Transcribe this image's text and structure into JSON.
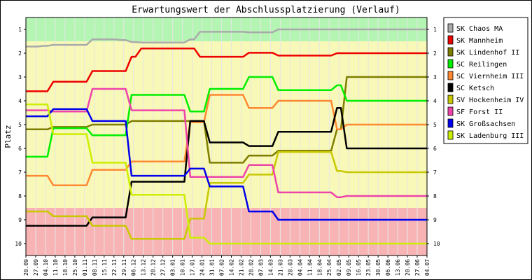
{
  "chart_data": {
    "type": "line",
    "title": "Erwartungswert der Abschlussplatzierung (Verlauf)",
    "ylabel": "Platz",
    "xlabel": "",
    "ylim": [
      1,
      10
    ],
    "y_inverted": true,
    "yticks": [
      1,
      2,
      3,
      4,
      5,
      6,
      7,
      8,
      9,
      10
    ],
    "legend_position": "right",
    "x": [
      "20.09",
      "27.09",
      "04.10",
      "11.10",
      "18.10",
      "25.10",
      "01.11",
      "08.11",
      "15.11",
      "22.11",
      "29.11",
      "06.12",
      "13.12",
      "20.12",
      "27.12",
      "03.01",
      "10.01",
      "17.01",
      "24.01",
      "31.01",
      "07.02",
      "14.02",
      "21.02",
      "28.02",
      "07.03",
      "14.03",
      "21.03",
      "28.03",
      "04.04",
      "11.04",
      "18.04",
      "25.04",
      "02.05",
      "09.05",
      "16.05",
      "23.05",
      "30.05",
      "06.06",
      "13.06",
      "20.06",
      "27.06",
      "04.07"
    ],
    "bands": [
      {
        "from": 0.5,
        "to": 1.5,
        "color": "#b4f5b4"
      },
      {
        "from": 1.5,
        "to": 8.5,
        "color": "#f8f8b8"
      },
      {
        "from": 8.5,
        "to": 10.5,
        "color": "#f8b4b4"
      }
    ],
    "series": [
      {
        "name": "SK Chaos MA",
        "color": "#aaaaaa",
        "values": [
          1.72,
          1.72,
          1.69,
          1.65,
          1.65,
          1.65,
          1.65,
          1.42,
          1.42,
          1.42,
          1.45,
          1.53,
          1.55,
          1.55,
          1.55,
          1.55,
          1.55,
          1.42,
          1.1,
          1.1,
          1.1,
          1.1,
          1.1,
          1.12,
          1.12,
          1.12,
          1,
          1,
          1,
          1,
          1,
          1,
          1,
          1,
          1,
          1,
          1,
          1,
          1,
          1,
          1,
          1
        ]
      },
      {
        "name": "SK Mannheim",
        "color": "#ee0000",
        "values": [
          3.6,
          3.6,
          3.6,
          3.2,
          3.2,
          3.2,
          3.2,
          2.75,
          2.75,
          2.75,
          2.75,
          2.15,
          1.8,
          1.8,
          1.8,
          1.8,
          1.8,
          1.8,
          2.15,
          2.15,
          2.15,
          2.15,
          2.15,
          1.98,
          1.98,
          1.98,
          2.1,
          2.1,
          2.1,
          2.1,
          2.1,
          2.1,
          2.0,
          2,
          2,
          2,
          2,
          2,
          2,
          2,
          2,
          2
        ]
      },
      {
        "name": "SK Lindenhof II",
        "color": "#7d7d00",
        "values": [
          5.2,
          5.2,
          5.2,
          5.1,
          5.1,
          5.1,
          5.1,
          5.0,
          5.0,
          5.0,
          5.0,
          4.85,
          4.85,
          4.85,
          4.85,
          4.85,
          4.85,
          4.85,
          4.85,
          6.6,
          6.6,
          6.6,
          6.6,
          6.3,
          6.3,
          6.3,
          6.1,
          6.1,
          6.1,
          6.1,
          6.1,
          6.1,
          5.2,
          3,
          3,
          3,
          3,
          3,
          3,
          3,
          3,
          3
        ]
      },
      {
        "name": "SC Reilingen",
        "color": "#00ee00",
        "values": [
          6.35,
          6.35,
          6.35,
          5.15,
          5.15,
          5.15,
          5.15,
          5.45,
          5.45,
          5.45,
          5.45,
          3.75,
          3.75,
          3.75,
          3.75,
          3.75,
          3.75,
          4.45,
          4.45,
          3.5,
          3.5,
          3.5,
          3.5,
          3.0,
          3.0,
          3.0,
          3.55,
          3.55,
          3.55,
          3.55,
          3.55,
          3.55,
          3.35,
          4,
          4,
          4,
          4,
          4,
          4,
          4,
          4,
          4
        ]
      },
      {
        "name": "SC Viernheim III",
        "color": "#ff8833",
        "values": [
          7.15,
          7.15,
          7.15,
          7.55,
          7.55,
          7.55,
          7.55,
          6.9,
          6.9,
          6.9,
          6.9,
          6.55,
          6.55,
          6.55,
          6.55,
          6.55,
          6.55,
          4.9,
          4.9,
          3.75,
          3.75,
          3.75,
          3.75,
          4.3,
          4.3,
          4.3,
          4.0,
          4.0,
          4.0,
          4.0,
          4.0,
          4.0,
          5.2,
          5,
          5,
          5,
          5,
          5,
          5,
          5,
          5,
          5
        ]
      },
      {
        "name": "SC Ketsch",
        "color": "#000000",
        "values": [
          9.25,
          9.25,
          9.25,
          9.25,
          9.25,
          9.25,
          9.25,
          8.9,
          8.9,
          8.9,
          8.9,
          7.4,
          7.4,
          7.4,
          7.4,
          7.4,
          7.4,
          4.85,
          4.85,
          5.75,
          5.75,
          5.75,
          5.75,
          5.9,
          5.9,
          5.9,
          5.3,
          5.3,
          5.3,
          5.3,
          5.3,
          5.3,
          4.3,
          6,
          6,
          6,
          6,
          6,
          6,
          6,
          6,
          6
        ]
      },
      {
        "name": "SV Hockenheim IV",
        "color": "#c8c800",
        "values": [
          8.65,
          8.65,
          8.65,
          8.85,
          8.85,
          8.85,
          8.85,
          9.25,
          9.25,
          9.25,
          9.25,
          9.8,
          9.8,
          9.8,
          9.8,
          9.8,
          9.8,
          8.95,
          8.95,
          7.45,
          7.45,
          7.45,
          7.45,
          7.1,
          7.1,
          7.1,
          6.15,
          6.15,
          6.15,
          6.15,
          6.15,
          6.15,
          6.95,
          7,
          7,
          7,
          7,
          7,
          7,
          7,
          7,
          7
        ]
      },
      {
        "name": "SF Forst II",
        "color": "#ee44aa",
        "values": [
          4.4,
          4.4,
          4.4,
          4.45,
          4.45,
          4.45,
          4.45,
          3.5,
          3.5,
          3.5,
          3.5,
          4.4,
          4.4,
          4.4,
          4.4,
          4.4,
          4.4,
          7.2,
          7.2,
          7.2,
          7.2,
          7.2,
          7.2,
          6.7,
          6.7,
          6.7,
          7.85,
          7.85,
          7.85,
          7.85,
          7.85,
          7.85,
          8.05,
          8,
          8,
          8,
          8,
          8,
          8,
          8,
          8,
          8
        ]
      },
      {
        "name": "SK Großsachsen",
        "color": "#0000ee",
        "values": [
          4.65,
          4.65,
          4.65,
          4.35,
          4.35,
          4.35,
          4.35,
          4.85,
          4.85,
          4.85,
          4.85,
          7.15,
          7.15,
          7.15,
          7.15,
          7.15,
          7.15,
          6.85,
          6.85,
          7.6,
          7.6,
          7.6,
          7.6,
          8.65,
          8.65,
          8.65,
          9.0,
          9.0,
          9.0,
          9.0,
          9.0,
          9.0,
          9.0,
          9,
          9,
          9,
          9,
          9,
          9,
          9,
          9,
          9
        ]
      },
      {
        "name": "SK Ladenburg III",
        "color": "#ccee00",
        "values": [
          4.15,
          4.15,
          4.15,
          5.4,
          5.4,
          5.4,
          5.4,
          6.6,
          6.6,
          6.6,
          6.6,
          7.95,
          7.95,
          7.95,
          7.95,
          7.95,
          7.95,
          9.75,
          9.75,
          10,
          10,
          10,
          10,
          10,
          10,
          10,
          10,
          10,
          10,
          10,
          10,
          10,
          10,
          10,
          10,
          10,
          10,
          10,
          10,
          10,
          10,
          10
        ]
      }
    ]
  }
}
